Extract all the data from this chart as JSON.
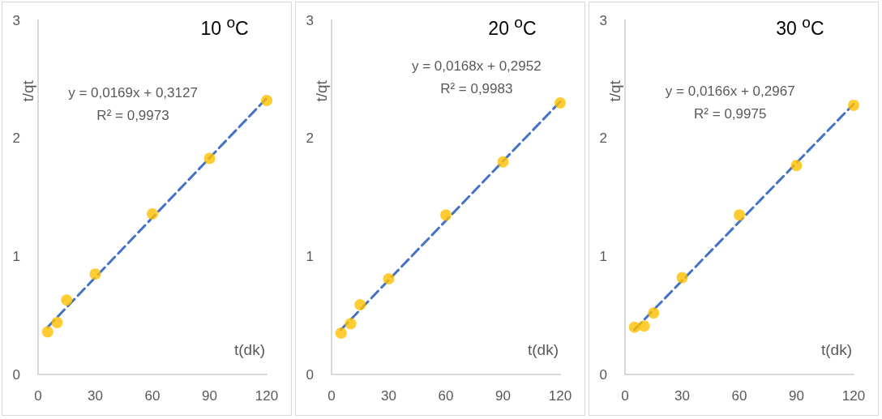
{
  "chart_data": [
    {
      "type": "scatter",
      "title": "10 $^{o}$C",
      "xlabel": "t(dk)",
      "ylabel": "t/qt",
      "xlim": [
        0,
        120
      ],
      "xticks": [
        0,
        30,
        60,
        90,
        120
      ],
      "ylim": [
        0,
        3
      ],
      "yticks": [
        0,
        1,
        2,
        3
      ],
      "grid": false,
      "marker": "circle",
      "annotations": [
        "y = 0,0169x + 0,3127",
        "R² = 0,9973"
      ],
      "series": [
        {
          "color": "#ffc000",
          "x": [
            5,
            10,
            15,
            30,
            60,
            90,
            120
          ],
          "values": [
            0.36,
            0.44,
            0.63,
            0.85,
            1.36,
            1.83,
            2.32
          ]
        },
        {
          "type": "line",
          "color": "#4472c4",
          "line_style": "dashed",
          "marker": "none",
          "x": [
            5,
            120
          ],
          "values": [
            0.4,
            2.34
          ]
        }
      ]
    },
    {
      "type": "scatter",
      "title": "20 $^{o}$C",
      "xlabel": "t(dk)",
      "ylabel": "t/qt",
      "xlim": [
        0,
        120
      ],
      "xticks": [
        0,
        30,
        60,
        90,
        120
      ],
      "ylim": [
        0,
        3
      ],
      "yticks": [
        0,
        1,
        2,
        3
      ],
      "grid": false,
      "marker": "circle",
      "annotations": [
        "y = 0,0168x + 0,2952",
        "R² = 0,9983"
      ],
      "series": [
        {
          "color": "#ffc000",
          "x": [
            5,
            10,
            15,
            30,
            60,
            90,
            120
          ],
          "values": [
            0.35,
            0.43,
            0.59,
            0.81,
            1.35,
            1.8,
            2.3
          ]
        },
        {
          "type": "line",
          "color": "#4472c4",
          "line_style": "dashed",
          "marker": "none",
          "x": [
            5,
            120
          ],
          "values": [
            0.38,
            2.31
          ]
        }
      ]
    },
    {
      "type": "scatter",
      "title": "30 $^{o}$C",
      "xlabel": "t(dk)",
      "ylabel": "t/qt",
      "xlim": [
        0,
        120
      ],
      "xticks": [
        0,
        30,
        60,
        90,
        120
      ],
      "ylim": [
        0,
        3
      ],
      "yticks": [
        0,
        1,
        2,
        3
      ],
      "grid": false,
      "marker": "circle",
      "annotations": [
        "y = 0,0166x + 0,2967",
        "R² = 0,9975"
      ],
      "series": [
        {
          "color": "#ffc000",
          "x": [
            5,
            10,
            15,
            30,
            60,
            90,
            120
          ],
          "values": [
            0.4,
            0.41,
            0.52,
            0.82,
            1.35,
            1.77,
            2.28
          ]
        },
        {
          "type": "line",
          "color": "#4472c4",
          "line_style": "dashed",
          "marker": "none",
          "x": [
            5,
            120
          ],
          "values": [
            0.38,
            2.29
          ]
        }
      ]
    }
  ]
}
